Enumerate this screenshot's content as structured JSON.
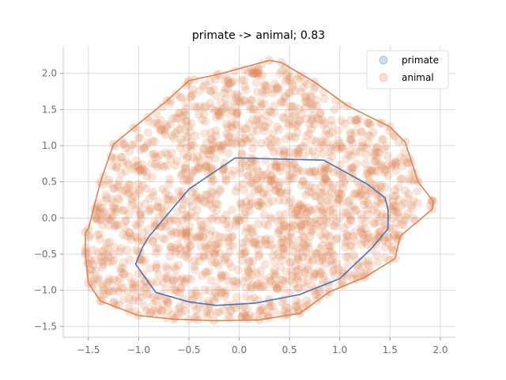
{
  "chart_data": {
    "type": "scatter",
    "title": "primate -> animal; 0.83",
    "xlabel": "",
    "ylabel": "",
    "xlim": [
      -1.75,
      2.15
    ],
    "ylim": [
      -1.65,
      2.38
    ],
    "xticks": [
      -1.5,
      -1.0,
      -0.5,
      0.0,
      0.5,
      1.0,
      1.5,
      2.0
    ],
    "xtick_labels": [
      "−1.5",
      "−1.0",
      "−0.5",
      "0.0",
      "0.5",
      "1.0",
      "1.5",
      "2.0"
    ],
    "yticks": [
      -1.5,
      -1.0,
      -0.5,
      0.0,
      0.5,
      1.0,
      1.5,
      2.0
    ],
    "ytick_labels": [
      "−1.5",
      "−1.0",
      "−0.5",
      "0.0",
      "0.5",
      "1.0",
      "1.5",
      "2.0"
    ],
    "grid": true,
    "legend_position": "top-right",
    "series": [
      {
        "name": "primate",
        "color": "#4c72b0",
        "hull": [
          [
            -0.04,
            0.83
          ],
          [
            0.84,
            0.8
          ],
          [
            1.27,
            0.47
          ],
          [
            1.45,
            0.28
          ],
          [
            1.48,
            0.12
          ],
          [
            1.48,
            -0.15
          ],
          [
            1.31,
            -0.43
          ],
          [
            1.0,
            -0.84
          ],
          [
            0.6,
            -1.06
          ],
          [
            0.15,
            -1.18
          ],
          [
            -0.23,
            -1.21
          ],
          [
            -0.5,
            -1.16
          ],
          [
            -0.83,
            -1.03
          ],
          [
            -1.03,
            -0.64
          ],
          [
            -0.96,
            -0.4
          ],
          [
            -0.9,
            -0.26
          ],
          [
            -0.5,
            0.4
          ]
        ]
      },
      {
        "name": "animal",
        "color": "#dd8452",
        "hull": [
          [
            0.3,
            2.18
          ],
          [
            0.42,
            2.15
          ],
          [
            0.75,
            1.88
          ],
          [
            1.08,
            1.55
          ],
          [
            1.5,
            1.26
          ],
          [
            1.65,
            1.05
          ],
          [
            1.78,
            0.5
          ],
          [
            1.93,
            0.23
          ],
          [
            1.92,
            0.12
          ],
          [
            1.6,
            -0.25
          ],
          [
            1.55,
            -0.56
          ],
          [
            1.25,
            -0.82
          ],
          [
            0.9,
            -1.02
          ],
          [
            0.6,
            -1.32
          ],
          [
            0.2,
            -1.41
          ],
          [
            -0.25,
            -1.42
          ],
          [
            -0.65,
            -1.4
          ],
          [
            -1.0,
            -1.35
          ],
          [
            -1.38,
            -1.15
          ],
          [
            -1.5,
            -0.9
          ],
          [
            -1.53,
            -0.5
          ],
          [
            -1.53,
            -0.2
          ],
          [
            -1.5,
            -0.15
          ],
          [
            -1.38,
            0.5
          ],
          [
            -1.25,
            1.02
          ],
          [
            -1.05,
            1.25
          ],
          [
            -0.72,
            1.62
          ],
          [
            -0.5,
            1.9
          ],
          [
            -0.2,
            1.99
          ]
        ]
      }
    ]
  }
}
